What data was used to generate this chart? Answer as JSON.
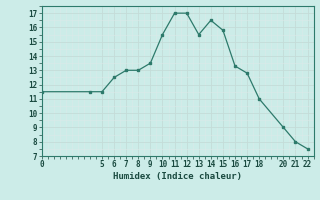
{
  "x": [
    0,
    4,
    5,
    6,
    7,
    8,
    9,
    10,
    11,
    12,
    13,
    14,
    15,
    16,
    17,
    18,
    20,
    21,
    22
  ],
  "y": [
    11.5,
    11.5,
    11.5,
    12.5,
    13.0,
    13.0,
    13.5,
    15.5,
    17.0,
    17.0,
    15.5,
    16.5,
    15.8,
    13.3,
    12.8,
    11.0,
    9.0,
    8.0,
    7.5
  ],
  "xlabel": "Humidex (Indice chaleur)",
  "line_color": "#2d7a6b",
  "marker_color": "#2d7a6b",
  "bg_color": "#ccece8",
  "grid_major_color": "#c4dcd8",
  "grid_minor_color": "#dbeae8",
  "xlim": [
    0,
    22.5
  ],
  "ylim": [
    7,
    17.5
  ],
  "yticks": [
    7,
    8,
    9,
    10,
    11,
    12,
    13,
    14,
    15,
    16,
    17
  ],
  "xticks": [
    0,
    5,
    6,
    7,
    8,
    9,
    10,
    11,
    12,
    13,
    14,
    15,
    16,
    17,
    18,
    20,
    21,
    22
  ],
  "tick_fontsize": 5.5,
  "xlabel_fontsize": 6.5
}
